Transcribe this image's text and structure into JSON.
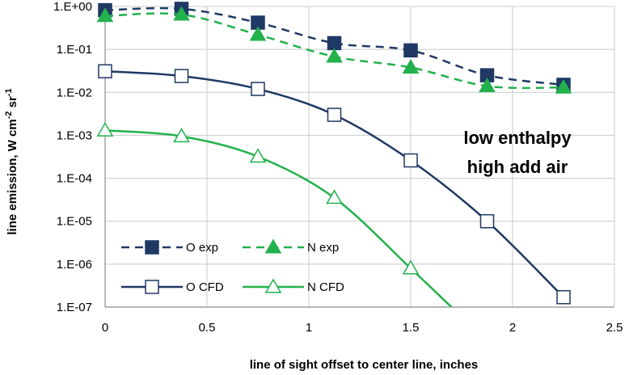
{
  "chart_data": {
    "type": "line",
    "title": "",
    "xlabel": "line of sight offset to center line, inches",
    "ylabel_parts": [
      "line emission,  W cm",
      "-2",
      " sr",
      "-1"
    ],
    "xlim": [
      0,
      2.5
    ],
    "ylim": [
      1e-07,
      1
    ],
    "yscale": "log",
    "xticks": [
      "0",
      "0.5",
      "1",
      "1.5",
      "2",
      "2.5"
    ],
    "yticks": [
      "1.E+00",
      "1.E-01",
      "1.E-02",
      "1.E-03",
      "1.E-04",
      "1.E-05",
      "1.E-06",
      "1.E-07"
    ],
    "grid": true,
    "legend_position": "bottom-left",
    "annotation": [
      "low enthalpy",
      "high add air"
    ],
    "series": [
      {
        "name": "O exp",
        "color": "#1f3864",
        "line": "dashed",
        "marker": "filled-square",
        "x": [
          0,
          0.375,
          0.75,
          1.125,
          1.5,
          1.875,
          2.25
        ],
        "y": [
          0.82,
          0.88,
          0.42,
          0.14,
          0.095,
          0.025,
          0.015
        ]
      },
      {
        "name": "N exp",
        "color": "#22b14c",
        "line": "dashed",
        "marker": "filled-triangle",
        "x": [
          0,
          0.375,
          0.75,
          1.125,
          1.5,
          1.875,
          2.25
        ],
        "y": [
          0.6,
          0.65,
          0.22,
          0.068,
          0.038,
          0.014,
          0.013
        ]
      },
      {
        "name": "O CFD",
        "color": "#1f3864",
        "line": "solid",
        "marker": "open-square",
        "x": [
          0,
          0.375,
          0.75,
          1.125,
          1.5,
          1.875,
          2.25
        ],
        "y": [
          0.031,
          0.024,
          0.012,
          0.003,
          0.00026,
          1e-05,
          1.7e-07
        ]
      },
      {
        "name": "N CFD",
        "color": "#22b14c",
        "line": "solid",
        "marker": "open-triangle",
        "x": [
          0,
          0.375,
          0.75,
          1.125,
          1.5,
          1.7
        ],
        "y": [
          0.0013,
          0.00095,
          0.00032,
          3.5e-05,
          8e-07,
          1e-07
        ]
      }
    ]
  }
}
